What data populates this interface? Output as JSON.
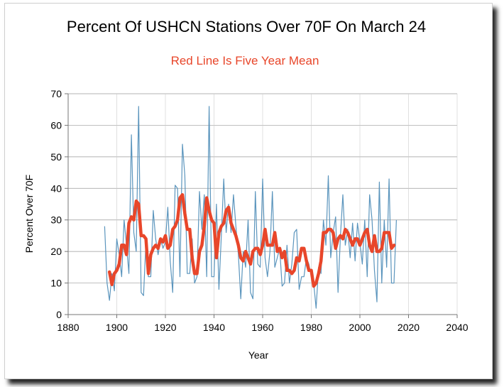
{
  "chart_data": {
    "type": "line",
    "title": "Percent Of USHCN Stations Over 70F On March 24",
    "subtitle": "Red Line Is Five Year Mean",
    "xlabel": "Year",
    "ylabel": "Percent Over 70F",
    "xlim": [
      1880,
      2040
    ],
    "ylim": [
      0,
      70
    ],
    "x_ticks": [
      1880,
      1900,
      1920,
      1940,
      1960,
      1980,
      2000,
      2020,
      2040
    ],
    "y_ticks": [
      0,
      10,
      20,
      30,
      40,
      50,
      60,
      70
    ],
    "grid": "horizontal",
    "legend": "none",
    "colors": {
      "annual": "#5b95bd",
      "mean": "#e8462a",
      "subtitle": "#e8462a",
      "grid": "#9a9a9a"
    },
    "series": [
      {
        "x": [
          1895,
          1896,
          1897,
          1898,
          1899,
          1900,
          1901,
          1902,
          1903,
          1904,
          1905,
          1906,
          1907,
          1908,
          1909,
          1910,
          1911,
          1912,
          1913,
          1914,
          1915,
          1916,
          1917,
          1918,
          1919,
          1920,
          1921,
          1922,
          1923,
          1924,
          1925,
          1926,
          1927,
          1928,
          1929,
          1930,
          1931,
          1932,
          1933,
          1934,
          1935,
          1936,
          1937,
          1938,
          1939,
          1940,
          1941,
          1942,
          1943,
          1944,
          1945,
          1946,
          1947,
          1948,
          1949,
          1950,
          1951,
          1952,
          1953,
          1954,
          1955,
          1956,
          1957,
          1958,
          1959,
          1960,
          1961,
          1962,
          1963,
          1964,
          1965,
          1966,
          1967,
          1968,
          1969,
          1970,
          1971,
          1972,
          1973,
          1974,
          1975,
          1976,
          1977,
          1978,
          1979,
          1980,
          1981,
          1982,
          1983,
          1984,
          1985,
          1986,
          1987,
          1988,
          1989,
          1990,
          1991,
          1992,
          1993,
          1994,
          1995,
          1996,
          1997,
          1998,
          1999,
          2000,
          2001,
          2002,
          2003,
          2004,
          2005,
          2006,
          2007,
          2008,
          2009,
          2010,
          2011,
          2012,
          2013,
          2014,
          2015
        ],
        "values": [
          28,
          10,
          4.5,
          13,
          7.5,
          24,
          19,
          12,
          30,
          22,
          13,
          57,
          26,
          20,
          66,
          7,
          6,
          23,
          12,
          12,
          33,
          24,
          19,
          24,
          21,
          23,
          34,
          17,
          7,
          41,
          40,
          12,
          54,
          44,
          13,
          13,
          24,
          10,
          12,
          39,
          27,
          38,
          12,
          66,
          12,
          12,
          35,
          8,
          25,
          43,
          26,
          35,
          26,
          38,
          28,
          19,
          5,
          20,
          15,
          30,
          7,
          5,
          39,
          16,
          15,
          43,
          18,
          12,
          20,
          39,
          15,
          18,
          21,
          9,
          10,
          22,
          10,
          16,
          26,
          27,
          8,
          12,
          12,
          18,
          16,
          12,
          10,
          2,
          15,
          13,
          30,
          22,
          44,
          18,
          26,
          31,
          7,
          25,
          38,
          22,
          27,
          18,
          29,
          17,
          29,
          23,
          16,
          30,
          12,
          38,
          30,
          14,
          4,
          42,
          10,
          30,
          15,
          43,
          10,
          10,
          30
        ]
      },
      {
        "name": "Five Year Mean",
        "x": [
          1897,
          1898,
          1899,
          1900,
          1901,
          1902,
          1903,
          1904,
          1905,
          1906,
          1907,
          1908,
          1909,
          1910,
          1911,
          1912,
          1913,
          1914,
          1915,
          1916,
          1917,
          1918,
          1919,
          1920,
          1921,
          1922,
          1923,
          1924,
          1925,
          1926,
          1927,
          1928,
          1929,
          1930,
          1931,
          1932,
          1933,
          1934,
          1935,
          1936,
          1937,
          1938,
          1939,
          1940,
          1941,
          1942,
          1943,
          1944,
          1945,
          1946,
          1947,
          1948,
          1949,
          1950,
          1951,
          1952,
          1953,
          1954,
          1955,
          1956,
          1957,
          1958,
          1959,
          1960,
          1961,
          1962,
          1963,
          1964,
          1965,
          1966,
          1967,
          1968,
          1969,
          1970,
          1971,
          1972,
          1973,
          1974,
          1975,
          1976,
          1977,
          1978,
          1979,
          1980,
          1981,
          1982,
          1983,
          1984,
          1985,
          1986,
          1987,
          1988,
          1989,
          1990,
          1991,
          1992,
          1993,
          1994,
          1995,
          1996,
          1997,
          1998,
          1999,
          2000,
          2001,
          2002,
          2003,
          2004,
          2005,
          2006,
          2007,
          2008,
          2009,
          2010,
          2011,
          2012,
          2013,
          2014
        ],
        "values": [
          13.5,
          9.5,
          13,
          14,
          16,
          22,
          22,
          19,
          29,
          31,
          30,
          36,
          35,
          25,
          25,
          24,
          13,
          19,
          21,
          22,
          21,
          24,
          23,
          25,
          21,
          22,
          27,
          28,
          30,
          37,
          38,
          32,
          27,
          27,
          18,
          13,
          13,
          20,
          22,
          28,
          37,
          33,
          30,
          29,
          18,
          26,
          28,
          29,
          33,
          34,
          29,
          27,
          25,
          22,
          18,
          17,
          20,
          18,
          16,
          20,
          21,
          21,
          19,
          22,
          27,
          22,
          22,
          22,
          26,
          20,
          21,
          18,
          20,
          14,
          14,
          13,
          14,
          18,
          17,
          21,
          21,
          17,
          14,
          14,
          9,
          10,
          13,
          17,
          26,
          26,
          27,
          27,
          26,
          21,
          24,
          25,
          24,
          27,
          26,
          24,
          22,
          24,
          24,
          22,
          24,
          26,
          27,
          22,
          20,
          25,
          20,
          20,
          21,
          26,
          26,
          26,
          21,
          22
        ]
      }
    ]
  }
}
